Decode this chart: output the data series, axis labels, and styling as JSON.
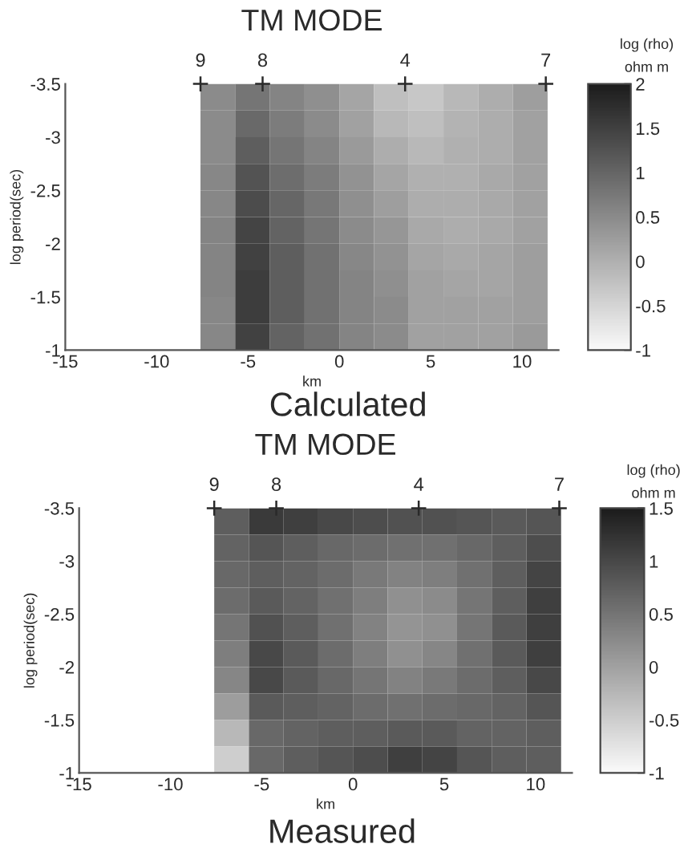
{
  "chart_data": [
    {
      "type": "heatmap",
      "title": "TM MODE",
      "xlabel": "km",
      "ylabel": "log period(sec)",
      "clabel": "log (rho)\nohm m",
      "annotations": [
        "Calculated",
        {
          "text": "9",
          "x": -7.6,
          "y": -3.5
        },
        {
          "text": "8",
          "x": -4.2,
          "y": -3.5
        },
        {
          "text": "4",
          "x": 3.6,
          "y": -3.5
        },
        {
          "text": "7",
          "x": 11.3,
          "y": -3.5
        }
      ],
      "x": [
        -6.65,
        -4.75,
        -2.85,
        -0.95,
        0.95,
        2.85,
        4.75,
        6.65,
        8.55,
        10.45
      ],
      "cells": [
        [
          0.5,
          0.8,
          0.6,
          0.45,
          0.15,
          -0.2,
          -0.3,
          -0.1,
          0.05,
          0.25
        ],
        [
          0.5,
          0.95,
          0.7,
          0.5,
          0.2,
          -0.1,
          -0.2,
          -0.05,
          0.05,
          0.2
        ],
        [
          0.5,
          1.1,
          0.8,
          0.6,
          0.3,
          0.05,
          -0.1,
          0.0,
          0.05,
          0.2
        ],
        [
          0.55,
          1.25,
          0.9,
          0.7,
          0.4,
          0.15,
          0.0,
          0.0,
          0.1,
          0.2
        ],
        [
          0.55,
          1.35,
          1.0,
          0.75,
          0.45,
          0.25,
          0.05,
          0.05,
          0.1,
          0.2
        ],
        [
          0.6,
          1.45,
          1.05,
          0.8,
          0.5,
          0.35,
          0.1,
          0.05,
          0.1,
          0.2
        ],
        [
          0.6,
          1.5,
          1.1,
          0.85,
          0.55,
          0.4,
          0.15,
          0.1,
          0.15,
          0.25
        ],
        [
          0.6,
          1.55,
          1.1,
          0.85,
          0.6,
          0.45,
          0.2,
          0.15,
          0.15,
          0.25
        ],
        [
          0.55,
          1.55,
          1.1,
          0.85,
          0.6,
          0.5,
          0.2,
          0.2,
          0.2,
          0.25
        ],
        [
          0.55,
          1.5,
          1.05,
          0.85,
          0.6,
          0.5,
          0.2,
          0.2,
          0.2,
          0.3
        ]
      ],
      "series": [
        {
          "type": "scatter",
          "x": [
            -7.6,
            -4.2,
            3.6,
            11.3
          ],
          "values": [
            -3.5,
            -3.5,
            -3.5,
            -3.5
          ],
          "color": "#2a2a2a"
        }
      ],
      "marker": "cross",
      "clim": [
        -1,
        2
      ],
      "cticks": [
        -1,
        -0.5,
        0,
        0.5,
        1,
        1.5,
        2
      ],
      "xlim": [
        -15,
        12
      ],
      "xticks": [
        -15,
        -10,
        -5,
        0,
        5,
        10
      ],
      "ylim": [
        -1,
        -3.5
      ],
      "yticks": [
        -3.5,
        -3,
        -2.5,
        -2,
        -1.5,
        -1
      ]
    },
    {
      "type": "heatmap",
      "title": "TM MODE",
      "xlabel": "km",
      "ylabel": "log period(sec)",
      "clabel": "log (rho)\nohm m",
      "annotations": [
        "Measured",
        {
          "text": "9",
          "x": -7.6,
          "y": -3.5
        },
        {
          "text": "8",
          "x": -4.2,
          "y": -3.5
        },
        {
          "text": "4",
          "x": 3.6,
          "y": -3.5
        },
        {
          "text": "7",
          "x": 11.3,
          "y": -3.5
        }
      ],
      "x": [
        -6.65,
        -4.75,
        -2.85,
        -0.95,
        0.95,
        2.85,
        4.75,
        6.65,
        8.55,
        10.45
      ],
      "cells": [
        [
          0.75,
          1.15,
          1.1,
          1.0,
          0.95,
          0.9,
          0.9,
          0.85,
          0.8,
          0.85
        ],
        [
          0.7,
          0.85,
          0.75,
          0.65,
          0.6,
          0.55,
          0.55,
          0.65,
          0.75,
          0.95
        ],
        [
          0.65,
          0.75,
          0.7,
          0.6,
          0.45,
          0.35,
          0.4,
          0.55,
          0.75,
          1.05
        ],
        [
          0.6,
          0.8,
          0.7,
          0.55,
          0.4,
          0.2,
          0.25,
          0.5,
          0.75,
          1.1
        ],
        [
          0.5,
          0.9,
          0.75,
          0.55,
          0.35,
          0.15,
          0.2,
          0.5,
          0.8,
          1.1
        ],
        [
          0.4,
          1.0,
          0.8,
          0.6,
          0.4,
          0.2,
          0.3,
          0.55,
          0.8,
          1.1
        ],
        [
          0.3,
          1.0,
          0.8,
          0.65,
          0.5,
          0.35,
          0.45,
          0.6,
          0.75,
          1.0
        ],
        [
          0.05,
          0.8,
          0.75,
          0.7,
          0.6,
          0.55,
          0.6,
          0.65,
          0.7,
          0.85
        ],
        [
          -0.25,
          0.65,
          0.7,
          0.75,
          0.75,
          0.8,
          0.8,
          0.7,
          0.7,
          0.75
        ],
        [
          -0.5,
          0.65,
          0.75,
          0.85,
          0.95,
          1.1,
          1.05,
          0.85,
          0.75,
          0.75
        ]
      ],
      "series": [
        {
          "type": "scatter",
          "x": [
            -7.6,
            -4.2,
            3.6,
            11.3
          ],
          "values": [
            -3.5,
            -3.5,
            -3.5,
            -3.5
          ],
          "color": "#2a2a2a"
        }
      ],
      "marker": "cross",
      "clim": [
        -1,
        1.5
      ],
      "cticks": [
        -1,
        -0.5,
        0,
        0.5,
        1,
        1.5
      ],
      "xlim": [
        -15,
        12
      ],
      "xticks": [
        -15,
        -10,
        -5,
        0,
        5,
        10
      ],
      "ylim": [
        -1,
        -3.5
      ],
      "yticks": [
        -3.5,
        -3,
        -2.5,
        -2,
        -1.5,
        -1
      ]
    }
  ]
}
